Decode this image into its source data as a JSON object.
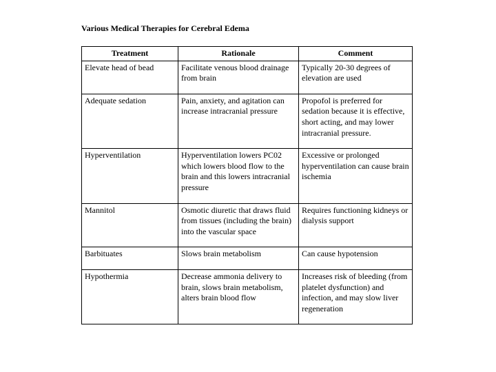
{
  "title": "Various Medical Therapies for Cerebral Edema",
  "table": {
    "headers": [
      "Treatment",
      "Rationale",
      "Comment"
    ],
    "rows": [
      {
        "treatment": "Elevate head of bead",
        "rationale": "Facilitate venous blood drainage from brain",
        "comment": "Typically 20-30 degrees of elevation are used"
      },
      {
        "treatment": "Adequate sedation",
        "rationale": "Pain, anxiety, and agitation can increase intracranial pressure",
        "comment": "Propofol is preferred for sedation because it is effective, short acting, and may lower intracranial pressure."
      },
      {
        "treatment": "Hyperventilation",
        "rationale": "Hyperventilation lowers PC02 which lowers blood flow to the brain and this lowers intracranial pressure",
        "comment": "Excessive or prolonged hyperventilation can cause brain ischemia"
      },
      {
        "treatment": "Mannitol",
        "rationale": "Osmotic diuretic that draws fluid from tissues (including the brain) into the vascular space",
        "comment": "Requires functioning kidneys or dialysis support"
      },
      {
        "treatment": "Barbituates",
        "rationale": "Slows brain metabolism",
        "comment": "Can cause hypotension"
      },
      {
        "treatment": "Hypothermia",
        "rationale": "Decrease ammonia delivery to brain, slows brain metabolism, alters brain blood flow",
        "comment": "Increases risk of bleeding (from platelet dysfunction) and infection, and may slow liver regeneration"
      }
    ]
  }
}
